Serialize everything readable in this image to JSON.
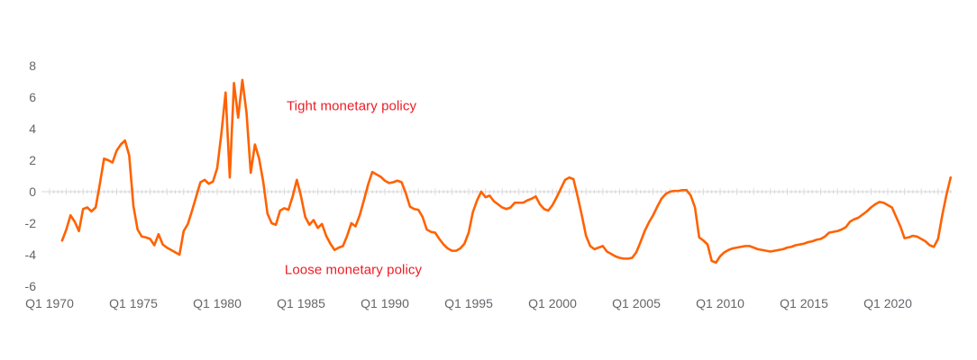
{
  "colors": {
    "line": "#ff6200",
    "annotation_text": "#ed1c24",
    "axis_line": "#d8d8d8",
    "label_text": "#63666a",
    "background": "#ffffff"
  },
  "chart_data": {
    "type": "line",
    "title": "",
    "xlabel": "",
    "ylabel": "",
    "grid": "zero-axis-only",
    "legend": "none",
    "x_axis": {
      "frequency": "quarterly",
      "start": "Q4 1970",
      "end": "Q4 2023",
      "tick_labels": [
        "Q1 1970",
        "Q1 1975",
        "Q1 1980",
        "Q1 1985",
        "Q1 1990",
        "Q1 1995",
        "Q1 2000",
        "Q1 2005",
        "Q1 2010",
        "Q1 2015",
        "Q1 2020"
      ]
    },
    "y_axis": {
      "ticks": [
        8,
        6,
        4,
        2,
        0,
        -2,
        -4,
        -6
      ],
      "ylim": [
        -6.5,
        8.5
      ]
    },
    "annotations": [
      {
        "text": "Tight monetary policy",
        "position": "above-zero"
      },
      {
        "text": "Loose monetary policy",
        "position": "below-zero"
      }
    ],
    "values": [
      -3.1,
      -2.4,
      -1.5,
      -1.9,
      -2.5,
      -1.1,
      -1.0,
      -1.25,
      -1.0,
      0.5,
      2.1,
      2.0,
      1.85,
      2.6,
      3.0,
      3.25,
      2.3,
      -0.9,
      -2.4,
      -2.85,
      -2.9,
      -3.0,
      -3.4,
      -2.7,
      -3.35,
      -3.55,
      -3.7,
      -3.85,
      -4.0,
      -2.5,
      -2.05,
      -1.2,
      -0.3,
      0.6,
      0.75,
      0.5,
      0.65,
      1.5,
      3.7,
      6.3,
      0.9,
      6.9,
      4.7,
      7.1,
      5.0,
      1.2,
      3.0,
      2.1,
      0.6,
      -1.4,
      -2.0,
      -2.1,
      -1.2,
      -1.05,
      -1.15,
      -0.3,
      0.75,
      -0.3,
      -1.6,
      -2.1,
      -1.8,
      -2.3,
      -2.05,
      -2.8,
      -3.3,
      -3.7,
      -3.55,
      -3.45,
      -2.8,
      -2.0,
      -2.2,
      -1.5,
      -0.55,
      0.45,
      1.25,
      1.1,
      0.95,
      0.7,
      0.55,
      0.6,
      0.7,
      0.6,
      -0.1,
      -0.95,
      -1.1,
      -1.15,
      -1.6,
      -2.4,
      -2.55,
      -2.6,
      -3.0,
      -3.35,
      -3.6,
      -3.75,
      -3.75,
      -3.6,
      -3.3,
      -2.6,
      -1.3,
      -0.55,
      0.0,
      -0.35,
      -0.25,
      -0.6,
      -0.8,
      -1.0,
      -1.1,
      -1.0,
      -0.7,
      -0.7,
      -0.7,
      -0.55,
      -0.45,
      -0.3,
      -0.8,
      -1.1,
      -1.2,
      -0.85,
      -0.35,
      0.2,
      0.75,
      0.9,
      0.8,
      -0.3,
      -1.5,
      -2.8,
      -3.45,
      -3.65,
      -3.55,
      -3.45,
      -3.8,
      -3.95,
      -4.1,
      -4.2,
      -4.25,
      -4.25,
      -4.2,
      -3.85,
      -3.2,
      -2.5,
      -1.95,
      -1.5,
      -0.95,
      -0.45,
      -0.15,
      0.0,
      0.05,
      0.05,
      0.1,
      0.1,
      -0.25,
      -1.0,
      -2.9,
      -3.1,
      -3.35,
      -4.4,
      -4.5,
      -4.1,
      -3.85,
      -3.7,
      -3.6,
      -3.55,
      -3.5,
      -3.45,
      -3.45,
      -3.55,
      -3.65,
      -3.7,
      -3.75,
      -3.8,
      -3.75,
      -3.7,
      -3.65,
      -3.55,
      -3.5,
      -3.4,
      -3.35,
      -3.3,
      -3.2,
      -3.15,
      -3.05,
      -3.0,
      -2.85,
      -2.6,
      -2.55,
      -2.5,
      -2.4,
      -2.25,
      -1.9,
      -1.75,
      -1.65,
      -1.45,
      -1.25,
      -1.0,
      -0.8,
      -0.65,
      -0.7,
      -0.85,
      -1.0,
      -1.6,
      -2.2,
      -2.95,
      -2.9,
      -2.8,
      -2.85,
      -3.0,
      -3.15,
      -3.4,
      -3.5,
      -3.0,
      -1.5,
      -0.2,
      0.9
    ]
  }
}
